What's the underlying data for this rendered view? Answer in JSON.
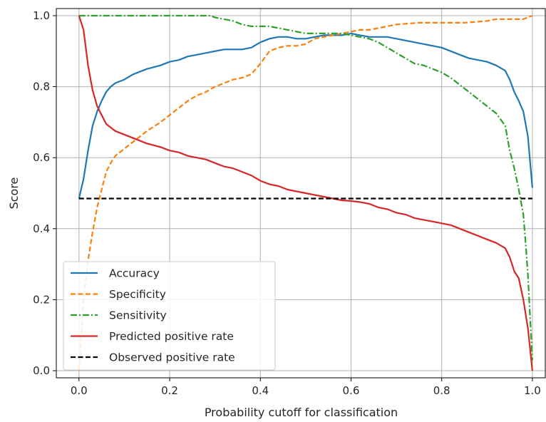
{
  "chart_data": {
    "type": "line",
    "title": "",
    "xlabel": "Probability cutoff for classification",
    "ylabel": "Score",
    "xlim": [
      -0.05,
      1.03
    ],
    "ylim": [
      -0.02,
      1.02
    ],
    "xticks": [
      "0.0",
      "0.2",
      "0.4",
      "0.6",
      "0.8",
      "1.0"
    ],
    "yticks": [
      "0.0",
      "0.2",
      "0.4",
      "0.6",
      "0.8",
      "1.0"
    ],
    "grid": true,
    "legend_position": "lower-left",
    "series": [
      {
        "name": "Accuracy",
        "color": "#1f77b4",
        "dash": "solid",
        "x": [
          0.0,
          0.01,
          0.02,
          0.03,
          0.04,
          0.05,
          0.06,
          0.07,
          0.08,
          0.1,
          0.12,
          0.15,
          0.18,
          0.2,
          0.22,
          0.24,
          0.26,
          0.28,
          0.3,
          0.32,
          0.34,
          0.36,
          0.38,
          0.4,
          0.42,
          0.44,
          0.46,
          0.48,
          0.5,
          0.52,
          0.54,
          0.56,
          0.58,
          0.6,
          0.62,
          0.64,
          0.66,
          0.68,
          0.7,
          0.72,
          0.74,
          0.76,
          0.78,
          0.8,
          0.82,
          0.84,
          0.86,
          0.88,
          0.9,
          0.92,
          0.94,
          0.95,
          0.96,
          0.97,
          0.98,
          0.99,
          1.0
        ],
        "y": [
          0.485,
          0.54,
          0.62,
          0.69,
          0.73,
          0.76,
          0.785,
          0.8,
          0.81,
          0.82,
          0.835,
          0.85,
          0.86,
          0.87,
          0.875,
          0.885,
          0.89,
          0.895,
          0.9,
          0.905,
          0.905,
          0.905,
          0.91,
          0.925,
          0.935,
          0.94,
          0.94,
          0.935,
          0.935,
          0.94,
          0.945,
          0.945,
          0.945,
          0.95,
          0.945,
          0.94,
          0.94,
          0.94,
          0.935,
          0.93,
          0.925,
          0.92,
          0.915,
          0.91,
          0.9,
          0.89,
          0.88,
          0.875,
          0.87,
          0.86,
          0.845,
          0.82,
          0.785,
          0.76,
          0.73,
          0.66,
          0.515
        ]
      },
      {
        "name": "Specificity",
        "color": "#ff7f0e",
        "dash": "dashed",
        "x": [
          0.0,
          0.01,
          0.02,
          0.03,
          0.04,
          0.05,
          0.06,
          0.07,
          0.08,
          0.1,
          0.12,
          0.15,
          0.18,
          0.2,
          0.22,
          0.24,
          0.26,
          0.28,
          0.3,
          0.32,
          0.34,
          0.36,
          0.38,
          0.4,
          0.42,
          0.44,
          0.46,
          0.48,
          0.5,
          0.52,
          0.54,
          0.56,
          0.58,
          0.6,
          0.62,
          0.64,
          0.66,
          0.68,
          0.7,
          0.75,
          0.8,
          0.85,
          0.9,
          0.92,
          0.94,
          0.96,
          0.98,
          1.0
        ],
        "y": [
          0.0,
          0.2,
          0.31,
          0.39,
          0.46,
          0.51,
          0.56,
          0.585,
          0.605,
          0.625,
          0.645,
          0.675,
          0.7,
          0.72,
          0.74,
          0.76,
          0.775,
          0.785,
          0.8,
          0.81,
          0.82,
          0.825,
          0.835,
          0.865,
          0.9,
          0.91,
          0.915,
          0.915,
          0.92,
          0.935,
          0.94,
          0.945,
          0.95,
          0.955,
          0.96,
          0.96,
          0.965,
          0.97,
          0.975,
          0.98,
          0.98,
          0.98,
          0.985,
          0.99,
          0.99,
          0.99,
          0.99,
          1.0
        ]
      },
      {
        "name": "Sensitivity",
        "color": "#2ca02c",
        "dash": "dashdot",
        "x": [
          0.0,
          0.05,
          0.1,
          0.15,
          0.2,
          0.25,
          0.29,
          0.3,
          0.32,
          0.34,
          0.36,
          0.38,
          0.4,
          0.42,
          0.44,
          0.46,
          0.48,
          0.5,
          0.52,
          0.54,
          0.56,
          0.58,
          0.6,
          0.62,
          0.64,
          0.66,
          0.68,
          0.7,
          0.72,
          0.74,
          0.76,
          0.78,
          0.8,
          0.82,
          0.84,
          0.86,
          0.88,
          0.9,
          0.92,
          0.94,
          0.95,
          0.96,
          0.97,
          0.98,
          0.985,
          0.99,
          0.995,
          1.0
        ],
        "y": [
          1.0,
          1.0,
          1.0,
          1.0,
          1.0,
          1.0,
          1.0,
          0.995,
          0.99,
          0.985,
          0.975,
          0.97,
          0.97,
          0.97,
          0.965,
          0.96,
          0.955,
          0.95,
          0.95,
          0.95,
          0.95,
          0.95,
          0.945,
          0.94,
          0.935,
          0.925,
          0.91,
          0.895,
          0.88,
          0.865,
          0.86,
          0.85,
          0.84,
          0.825,
          0.805,
          0.785,
          0.765,
          0.745,
          0.725,
          0.69,
          0.62,
          0.57,
          0.51,
          0.44,
          0.36,
          0.27,
          0.15,
          0.03
        ]
      },
      {
        "name": "Predicted positive rate",
        "color": "#d62728",
        "dash": "solid",
        "x": [
          0.0,
          0.01,
          0.02,
          0.03,
          0.04,
          0.05,
          0.06,
          0.07,
          0.08,
          0.1,
          0.12,
          0.15,
          0.18,
          0.2,
          0.22,
          0.24,
          0.26,
          0.28,
          0.3,
          0.32,
          0.34,
          0.36,
          0.38,
          0.4,
          0.42,
          0.44,
          0.46,
          0.48,
          0.5,
          0.52,
          0.54,
          0.56,
          0.58,
          0.6,
          0.62,
          0.64,
          0.66,
          0.68,
          0.7,
          0.72,
          0.74,
          0.76,
          0.78,
          0.8,
          0.82,
          0.84,
          0.86,
          0.88,
          0.9,
          0.92,
          0.94,
          0.95,
          0.96,
          0.97,
          0.98,
          0.99,
          1.0
        ],
        "y": [
          1.0,
          0.96,
          0.86,
          0.79,
          0.745,
          0.72,
          0.695,
          0.685,
          0.675,
          0.665,
          0.655,
          0.64,
          0.63,
          0.62,
          0.615,
          0.605,
          0.6,
          0.595,
          0.585,
          0.575,
          0.57,
          0.56,
          0.55,
          0.535,
          0.525,
          0.52,
          0.51,
          0.505,
          0.5,
          0.495,
          0.49,
          0.485,
          0.48,
          0.478,
          0.475,
          0.47,
          0.46,
          0.455,
          0.445,
          0.44,
          0.43,
          0.425,
          0.42,
          0.415,
          0.41,
          0.4,
          0.39,
          0.38,
          0.37,
          0.36,
          0.345,
          0.32,
          0.28,
          0.26,
          0.2,
          0.12,
          0.0
        ]
      },
      {
        "name": "Observed positive rate",
        "color": "#000000",
        "dash": "dashed",
        "x": [
          0.0,
          1.0
        ],
        "y": [
          0.485,
          0.485
        ]
      }
    ]
  }
}
